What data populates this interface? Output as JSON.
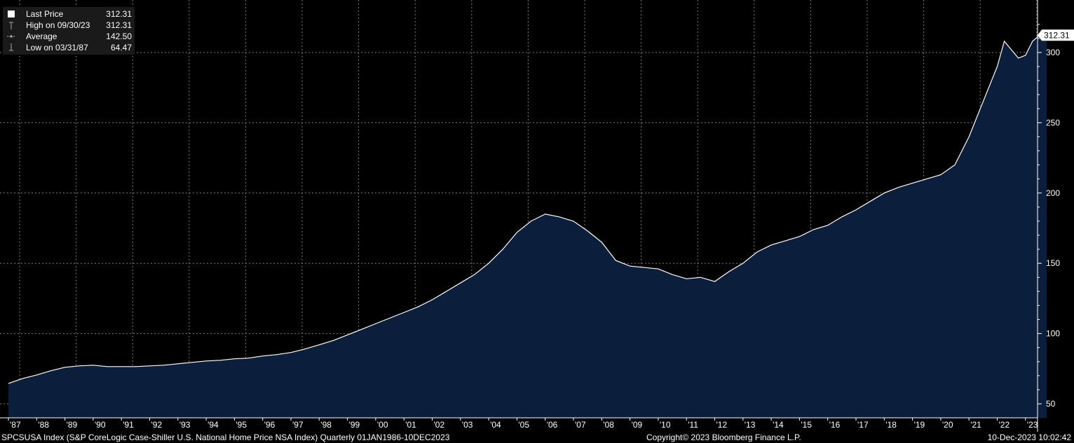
{
  "legend": {
    "items": [
      {
        "label": "Last Price",
        "value": "312.31",
        "icon": "white-square-icon"
      },
      {
        "label": "High on 09/30/23",
        "value": "312.31",
        "icon": "high-marker-icon"
      },
      {
        "label": "Average",
        "value": "142.50",
        "icon": "average-marker-icon"
      },
      {
        "label": "Low on 03/31/87",
        "value": "64.47",
        "icon": "low-marker-icon"
      }
    ]
  },
  "footer": {
    "ticker": "SPCSUSA Index (S&P CoreLogic Case-Shiller U.S. National Home Price NSA Index)  Quarterly 01JAN1986-10DEC2023",
    "copyright": "Copyright© 2023 Bloomberg Finance L.P.",
    "timestamp": "10-Dec-2023 10:02:42"
  },
  "colors": {
    "background": "#000000",
    "area_fill": "#0b1f3d",
    "line": "#ffffff",
    "grid": "#7a7a7a",
    "legend_bg": "#1a1a1a"
  },
  "chart_data": {
    "type": "area",
    "title": "",
    "xlabel": "",
    "ylabel": "",
    "last_value_label": "312.31",
    "ylim": [
      40,
      330
    ],
    "xlim": [
      1987.0,
      2024.0
    ],
    "grid": true,
    "yticks": [
      50,
      100,
      150,
      200,
      250,
      300
    ],
    "xticks": [
      {
        "label": "'87",
        "year": 1987
      },
      {
        "label": "'88",
        "year": 1988
      },
      {
        "label": "'89",
        "year": 1989
      },
      {
        "label": "'90",
        "year": 1990
      },
      {
        "label": "'91",
        "year": 1991
      },
      {
        "label": "'92",
        "year": 1992
      },
      {
        "label": "'93",
        "year": 1993
      },
      {
        "label": "'94",
        "year": 1994
      },
      {
        "label": "'95",
        "year": 1995
      },
      {
        "label": "'96",
        "year": 1996
      },
      {
        "label": "'97",
        "year": 1997
      },
      {
        "label": "'98",
        "year": 1998
      },
      {
        "label": "'99",
        "year": 1999
      },
      {
        "label": "'00",
        "year": 2000
      },
      {
        "label": "'01",
        "year": 2001
      },
      {
        "label": "'02",
        "year": 2002
      },
      {
        "label": "'03",
        "year": 2003
      },
      {
        "label": "'04",
        "year": 2004
      },
      {
        "label": "'05",
        "year": 2005
      },
      {
        "label": "'06",
        "year": 2006
      },
      {
        "label": "'07",
        "year": 2007
      },
      {
        "label": "'08",
        "year": 2008
      },
      {
        "label": "'09",
        "year": 2009
      },
      {
        "label": "'10",
        "year": 2010
      },
      {
        "label": "'11",
        "year": 2011
      },
      {
        "label": "'12",
        "year": 2012
      },
      {
        "label": "'13",
        "year": 2013
      },
      {
        "label": "'14",
        "year": 2014
      },
      {
        "label": "'15",
        "year": 2015
      },
      {
        "label": "'16",
        "year": 2016
      },
      {
        "label": "'17",
        "year": 2017
      },
      {
        "label": "'18",
        "year": 2018
      },
      {
        "label": "'19",
        "year": 2019
      },
      {
        "label": "'20",
        "year": 2020
      },
      {
        "label": "'21",
        "year": 2021
      },
      {
        "label": "'22",
        "year": 2022
      },
      {
        "label": "'23",
        "year": 2023
      }
    ],
    "series": [
      {
        "x": [
          1987.0,
          1987.5,
          1988.0,
          1988.5,
          1989.0,
          1989.5,
          1990.0,
          1990.5,
          1991.0,
          1991.5,
          1992.0,
          1992.5,
          1993.0,
          1993.5,
          1994.0,
          1994.5,
          1995.0,
          1995.5,
          1996.0,
          1996.5,
          1997.0,
          1997.5,
          1998.0,
          1998.5,
          1999.0,
          1999.5,
          2000.0,
          2000.5,
          2001.0,
          2001.5,
          2002.0,
          2002.5,
          2003.0,
          2003.5,
          2004.0,
          2004.5,
          2005.0,
          2005.5,
          2006.0,
          2006.5,
          2007.0,
          2007.5,
          2008.0,
          2008.5,
          2009.0,
          2009.5,
          2010.0,
          2010.5,
          2011.0,
          2011.5,
          2012.0,
          2012.5,
          2013.0,
          2013.5,
          2014.0,
          2014.5,
          2015.0,
          2015.5,
          2016.0,
          2016.5,
          2017.0,
          2017.5,
          2018.0,
          2018.5,
          2019.0,
          2019.5,
          2020.0,
          2020.5,
          2021.0,
          2021.5,
          2022.0,
          2022.25,
          2022.5,
          2022.75,
          2023.0,
          2023.25,
          2023.5,
          2023.75
        ],
        "values": [
          64.5,
          68.0,
          70.5,
          73.5,
          76.0,
          77.0,
          77.5,
          76.5,
          76.5,
          76.5,
          77.0,
          77.5,
          78.5,
          79.5,
          80.5,
          81.0,
          82.0,
          82.5,
          84.0,
          85.0,
          86.5,
          89.0,
          92.0,
          95.0,
          99.0,
          103.0,
          107.0,
          111.0,
          115.0,
          119.0,
          124.0,
          130.0,
          136.0,
          142.0,
          150.0,
          160.0,
          172.0,
          180.0,
          185.0,
          183.0,
          180.0,
          173.0,
          165.0,
          152.0,
          148.0,
          147.0,
          146.0,
          142.0,
          139.0,
          140.0,
          137.0,
          144.0,
          150.0,
          158.0,
          163.0,
          166.0,
          169.0,
          174.0,
          177.0,
          183.0,
          188.0,
          194.0,
          200.0,
          204.0,
          207.0,
          210.0,
          213.0,
          220.0,
          240.0,
          265.0,
          290.0,
          308.0,
          302.0,
          296.0,
          298.0,
          308.0,
          312.31,
          312.31
        ]
      }
    ]
  }
}
